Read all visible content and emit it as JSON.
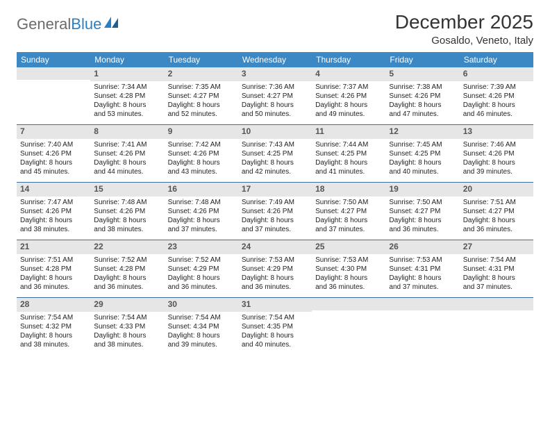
{
  "brand": {
    "part1": "General",
    "part2": "Blue"
  },
  "title": "December 2025",
  "location": "Gosaldo, Veneto, Italy",
  "colors": {
    "header_bg": "#3b88c4",
    "header_text": "#ffffff",
    "daynum_bg": "#e6e6e6",
    "week_border": "#3b6ea0",
    "logo_gray": "#6b6b6b",
    "logo_blue": "#2b7fc3"
  },
  "day_labels": [
    "Sunday",
    "Monday",
    "Tuesday",
    "Wednesday",
    "Thursday",
    "Friday",
    "Saturday"
  ],
  "weeks": [
    [
      {
        "blank": true
      },
      {
        "n": "1",
        "sunrise": "Sunrise: 7:34 AM",
        "sunset": "Sunset: 4:28 PM",
        "day1": "Daylight: 8 hours",
        "day2": "and 53 minutes."
      },
      {
        "n": "2",
        "sunrise": "Sunrise: 7:35 AM",
        "sunset": "Sunset: 4:27 PM",
        "day1": "Daylight: 8 hours",
        "day2": "and 52 minutes."
      },
      {
        "n": "3",
        "sunrise": "Sunrise: 7:36 AM",
        "sunset": "Sunset: 4:27 PM",
        "day1": "Daylight: 8 hours",
        "day2": "and 50 minutes."
      },
      {
        "n": "4",
        "sunrise": "Sunrise: 7:37 AM",
        "sunset": "Sunset: 4:26 PM",
        "day1": "Daylight: 8 hours",
        "day2": "and 49 minutes."
      },
      {
        "n": "5",
        "sunrise": "Sunrise: 7:38 AM",
        "sunset": "Sunset: 4:26 PM",
        "day1": "Daylight: 8 hours",
        "day2": "and 47 minutes."
      },
      {
        "n": "6",
        "sunrise": "Sunrise: 7:39 AM",
        "sunset": "Sunset: 4:26 PM",
        "day1": "Daylight: 8 hours",
        "day2": "and 46 minutes."
      }
    ],
    [
      {
        "n": "7",
        "sunrise": "Sunrise: 7:40 AM",
        "sunset": "Sunset: 4:26 PM",
        "day1": "Daylight: 8 hours",
        "day2": "and 45 minutes."
      },
      {
        "n": "8",
        "sunrise": "Sunrise: 7:41 AM",
        "sunset": "Sunset: 4:26 PM",
        "day1": "Daylight: 8 hours",
        "day2": "and 44 minutes."
      },
      {
        "n": "9",
        "sunrise": "Sunrise: 7:42 AM",
        "sunset": "Sunset: 4:26 PM",
        "day1": "Daylight: 8 hours",
        "day2": "and 43 minutes."
      },
      {
        "n": "10",
        "sunrise": "Sunrise: 7:43 AM",
        "sunset": "Sunset: 4:25 PM",
        "day1": "Daylight: 8 hours",
        "day2": "and 42 minutes."
      },
      {
        "n": "11",
        "sunrise": "Sunrise: 7:44 AM",
        "sunset": "Sunset: 4:25 PM",
        "day1": "Daylight: 8 hours",
        "day2": "and 41 minutes."
      },
      {
        "n": "12",
        "sunrise": "Sunrise: 7:45 AM",
        "sunset": "Sunset: 4:25 PM",
        "day1": "Daylight: 8 hours",
        "day2": "and 40 minutes."
      },
      {
        "n": "13",
        "sunrise": "Sunrise: 7:46 AM",
        "sunset": "Sunset: 4:26 PM",
        "day1": "Daylight: 8 hours",
        "day2": "and 39 minutes."
      }
    ],
    [
      {
        "n": "14",
        "sunrise": "Sunrise: 7:47 AM",
        "sunset": "Sunset: 4:26 PM",
        "day1": "Daylight: 8 hours",
        "day2": "and 38 minutes."
      },
      {
        "n": "15",
        "sunrise": "Sunrise: 7:48 AM",
        "sunset": "Sunset: 4:26 PM",
        "day1": "Daylight: 8 hours",
        "day2": "and 38 minutes."
      },
      {
        "n": "16",
        "sunrise": "Sunrise: 7:48 AM",
        "sunset": "Sunset: 4:26 PM",
        "day1": "Daylight: 8 hours",
        "day2": "and 37 minutes."
      },
      {
        "n": "17",
        "sunrise": "Sunrise: 7:49 AM",
        "sunset": "Sunset: 4:26 PM",
        "day1": "Daylight: 8 hours",
        "day2": "and 37 minutes."
      },
      {
        "n": "18",
        "sunrise": "Sunrise: 7:50 AM",
        "sunset": "Sunset: 4:27 PM",
        "day1": "Daylight: 8 hours",
        "day2": "and 37 minutes."
      },
      {
        "n": "19",
        "sunrise": "Sunrise: 7:50 AM",
        "sunset": "Sunset: 4:27 PM",
        "day1": "Daylight: 8 hours",
        "day2": "and 36 minutes."
      },
      {
        "n": "20",
        "sunrise": "Sunrise: 7:51 AM",
        "sunset": "Sunset: 4:27 PM",
        "day1": "Daylight: 8 hours",
        "day2": "and 36 minutes."
      }
    ],
    [
      {
        "n": "21",
        "sunrise": "Sunrise: 7:51 AM",
        "sunset": "Sunset: 4:28 PM",
        "day1": "Daylight: 8 hours",
        "day2": "and 36 minutes."
      },
      {
        "n": "22",
        "sunrise": "Sunrise: 7:52 AM",
        "sunset": "Sunset: 4:28 PM",
        "day1": "Daylight: 8 hours",
        "day2": "and 36 minutes."
      },
      {
        "n": "23",
        "sunrise": "Sunrise: 7:52 AM",
        "sunset": "Sunset: 4:29 PM",
        "day1": "Daylight: 8 hours",
        "day2": "and 36 minutes."
      },
      {
        "n": "24",
        "sunrise": "Sunrise: 7:53 AM",
        "sunset": "Sunset: 4:29 PM",
        "day1": "Daylight: 8 hours",
        "day2": "and 36 minutes."
      },
      {
        "n": "25",
        "sunrise": "Sunrise: 7:53 AM",
        "sunset": "Sunset: 4:30 PM",
        "day1": "Daylight: 8 hours",
        "day2": "and 36 minutes."
      },
      {
        "n": "26",
        "sunrise": "Sunrise: 7:53 AM",
        "sunset": "Sunset: 4:31 PM",
        "day1": "Daylight: 8 hours",
        "day2": "and 37 minutes."
      },
      {
        "n": "27",
        "sunrise": "Sunrise: 7:54 AM",
        "sunset": "Sunset: 4:31 PM",
        "day1": "Daylight: 8 hours",
        "day2": "and 37 minutes."
      }
    ],
    [
      {
        "n": "28",
        "sunrise": "Sunrise: 7:54 AM",
        "sunset": "Sunset: 4:32 PM",
        "day1": "Daylight: 8 hours",
        "day2": "and 38 minutes."
      },
      {
        "n": "29",
        "sunrise": "Sunrise: 7:54 AM",
        "sunset": "Sunset: 4:33 PM",
        "day1": "Daylight: 8 hours",
        "day2": "and 38 minutes."
      },
      {
        "n": "30",
        "sunrise": "Sunrise: 7:54 AM",
        "sunset": "Sunset: 4:34 PM",
        "day1": "Daylight: 8 hours",
        "day2": "and 39 minutes."
      },
      {
        "n": "31",
        "sunrise": "Sunrise: 7:54 AM",
        "sunset": "Sunset: 4:35 PM",
        "day1": "Daylight: 8 hours",
        "day2": "and 40 minutes."
      },
      {
        "blank": true
      },
      {
        "blank": true
      },
      {
        "blank": true
      }
    ]
  ]
}
